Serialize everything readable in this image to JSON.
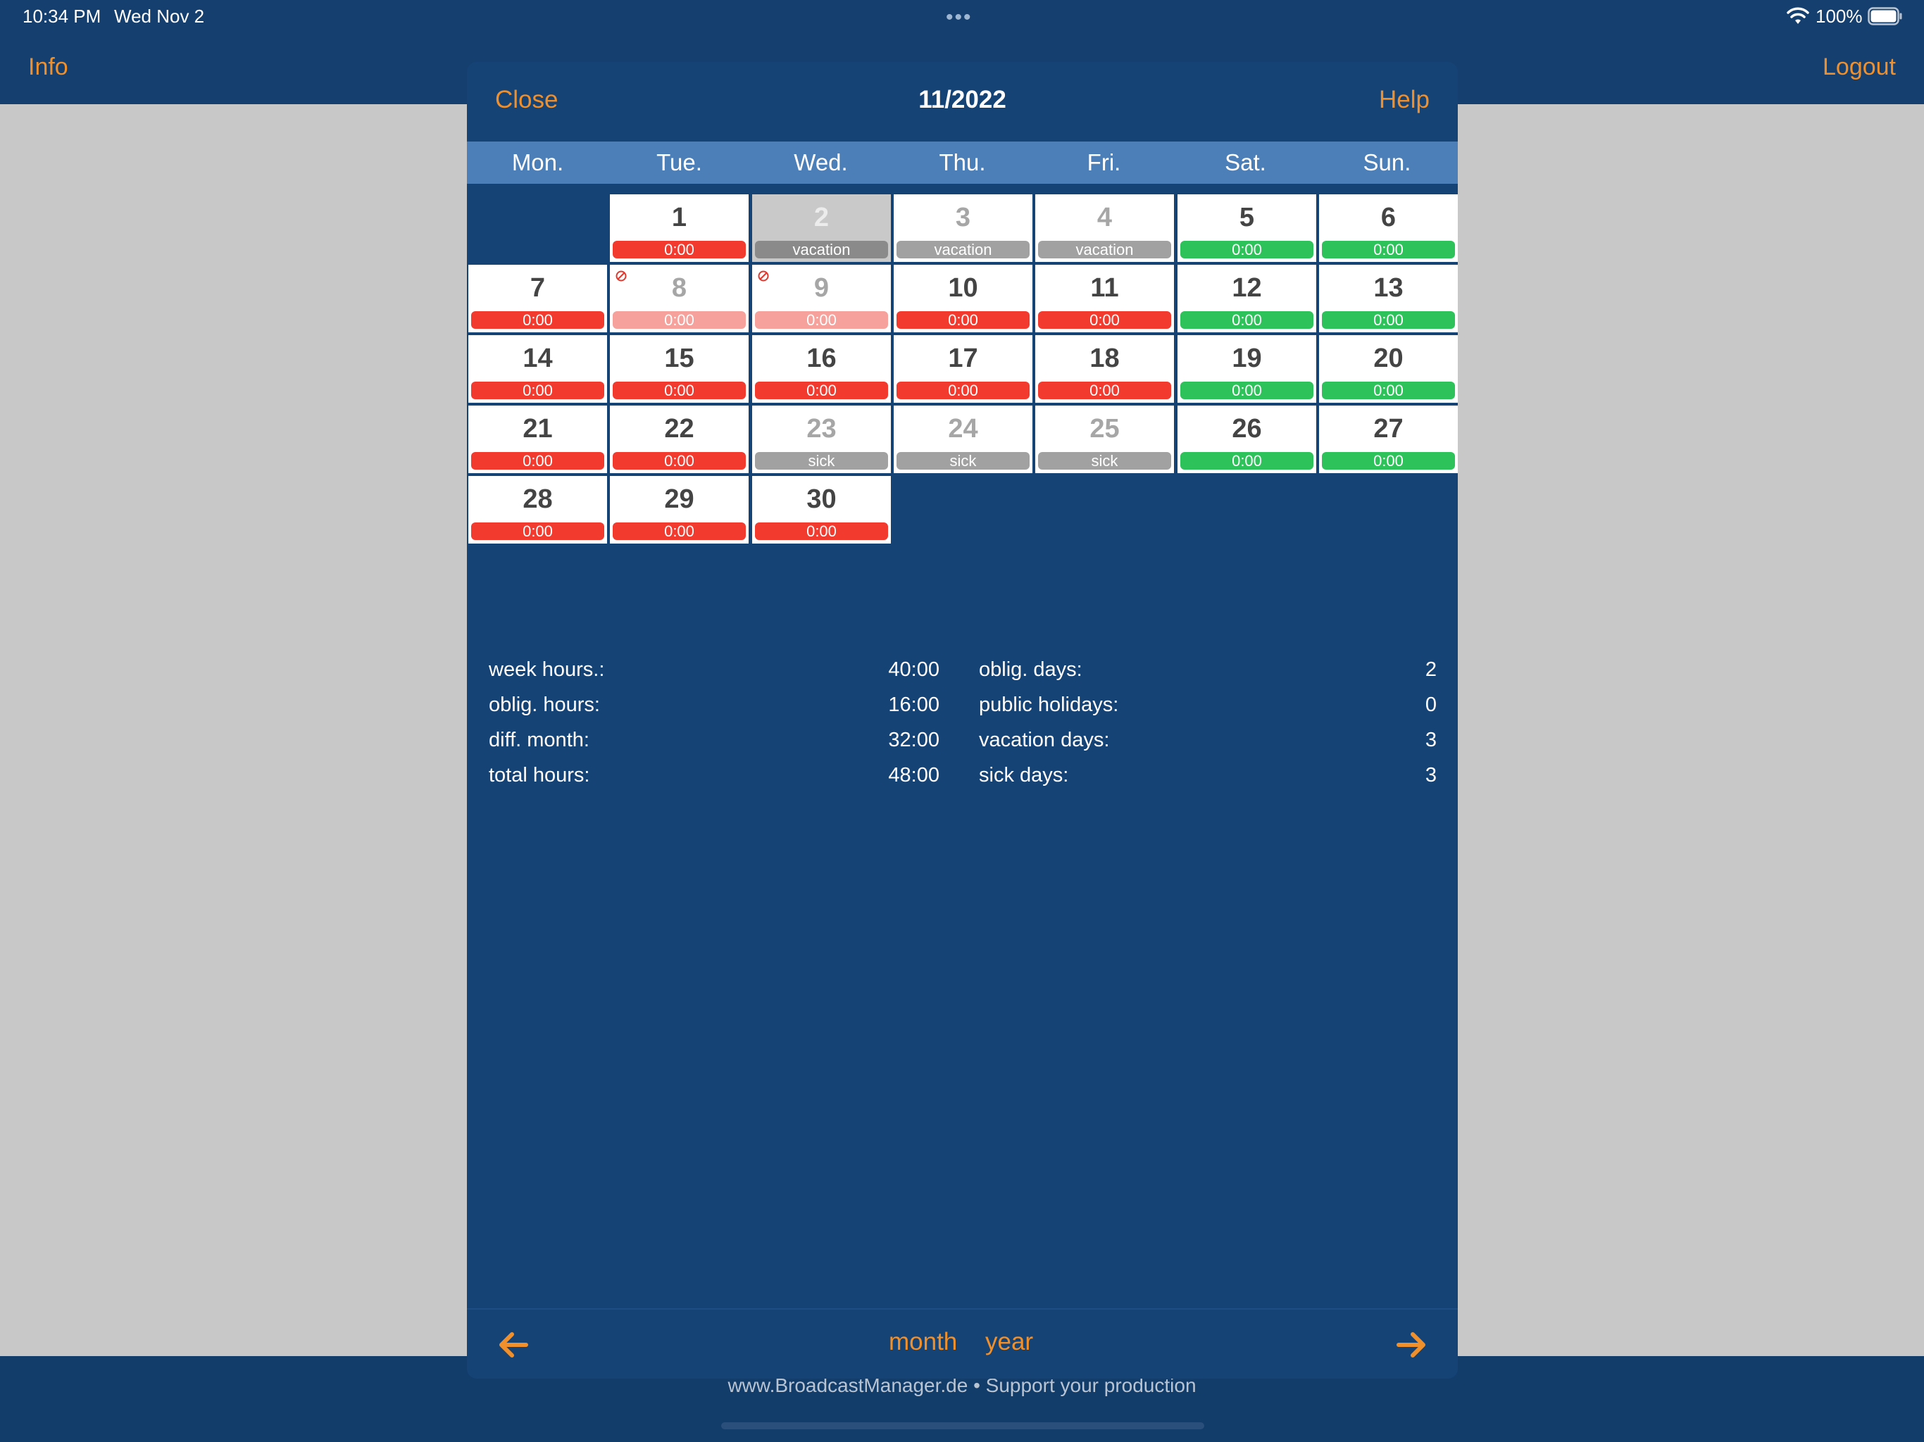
{
  "status_bar": {
    "time": "10:34 PM",
    "date": "Wed Nov 2",
    "battery": "100%",
    "dots": "•••"
  },
  "header": {
    "info_label": "Info",
    "logout_label": "Logout"
  },
  "footer": {
    "text": "www.BroadcastManager.de • Support your production"
  },
  "modal": {
    "close_label": "Close",
    "title": "11/2022",
    "help_label": "Help",
    "weekdays": [
      "Mon.",
      "Tue.",
      "Wed.",
      "Thu.",
      "Fri.",
      "Sat.",
      "Sun."
    ],
    "days": [
      {
        "day": "1",
        "label": "0:00",
        "status": "red"
      },
      {
        "day": "2",
        "label": "vacation",
        "status": "darkgray",
        "style": "disabled"
      },
      {
        "day": "3",
        "label": "vacation",
        "status": "gray",
        "style": "muted"
      },
      {
        "day": "4",
        "label": "vacation",
        "status": "gray",
        "style": "muted"
      },
      {
        "day": "5",
        "label": "0:00",
        "status": "green"
      },
      {
        "day": "6",
        "label": "0:00",
        "status": "green"
      },
      {
        "day": "7",
        "label": "0:00",
        "status": "red"
      },
      {
        "day": "8",
        "label": "0:00",
        "status": "lightred",
        "style": "muted",
        "icon": "no-entry-icon"
      },
      {
        "day": "9",
        "label": "0:00",
        "status": "lightred",
        "style": "muted",
        "icon": "no-entry-icon"
      },
      {
        "day": "10",
        "label": "0:00",
        "status": "red"
      },
      {
        "day": "11",
        "label": "0:00",
        "status": "red"
      },
      {
        "day": "12",
        "label": "0:00",
        "status": "green"
      },
      {
        "day": "13",
        "label": "0:00",
        "status": "green"
      },
      {
        "day": "14",
        "label": "0:00",
        "status": "red"
      },
      {
        "day": "15",
        "label": "0:00",
        "status": "red"
      },
      {
        "day": "16",
        "label": "0:00",
        "status": "red"
      },
      {
        "day": "17",
        "label": "0:00",
        "status": "red"
      },
      {
        "day": "18",
        "label": "0:00",
        "status": "red"
      },
      {
        "day": "19",
        "label": "0:00",
        "status": "green"
      },
      {
        "day": "20",
        "label": "0:00",
        "status": "green"
      },
      {
        "day": "21",
        "label": "0:00",
        "status": "red"
      },
      {
        "day": "22",
        "label": "0:00",
        "status": "red"
      },
      {
        "day": "23",
        "label": "sick",
        "status": "gray",
        "style": "muted"
      },
      {
        "day": "24",
        "label": "sick",
        "status": "gray",
        "style": "muted"
      },
      {
        "day": "25",
        "label": "sick",
        "status": "gray",
        "style": "muted"
      },
      {
        "day": "26",
        "label": "0:00",
        "status": "green"
      },
      {
        "day": "27",
        "label": "0:00",
        "status": "green"
      },
      {
        "day": "28",
        "label": "0:00",
        "status": "red"
      },
      {
        "day": "29",
        "label": "0:00",
        "status": "red"
      },
      {
        "day": "30",
        "label": "0:00",
        "status": "red"
      }
    ],
    "stats_left": [
      {
        "label": "week hours.:",
        "value": "40:00"
      },
      {
        "label": "oblig. hours:",
        "value": "16:00"
      },
      {
        "label": "diff. month:",
        "value": "32:00"
      },
      {
        "label": "total hours:",
        "value": "48:00"
      }
    ],
    "stats_right": [
      {
        "label": "oblig. days:",
        "value": "2"
      },
      {
        "label": "public holidays:",
        "value": "0"
      },
      {
        "label": "vacation days:",
        "value": "3"
      },
      {
        "label": "sick days:",
        "value": "3"
      }
    ],
    "bottom": {
      "month_label": "month",
      "year_label": "year",
      "prev_icon": "arrow-left-icon",
      "next_icon": "arrow-right-icon"
    }
  },
  "colors": {
    "accent": "#f0902c",
    "navy": "#154376",
    "weekday_bar": "#4c7fb8",
    "red": "#f23a2f",
    "light_red": "#f6a19b",
    "green": "#2dc25a",
    "gray": "#a1a1a1"
  }
}
